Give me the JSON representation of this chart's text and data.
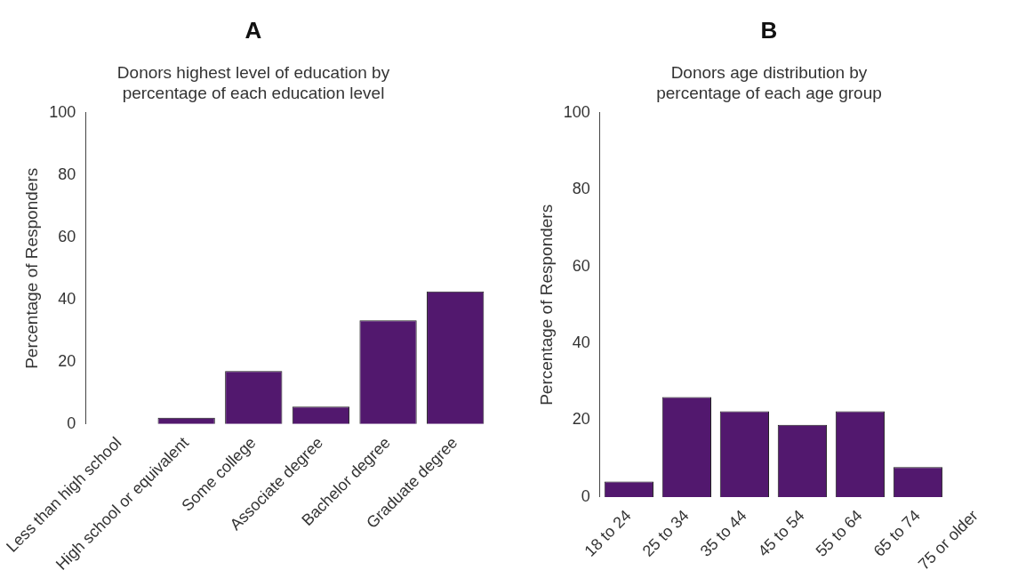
{
  "chart_data": [
    {
      "type": "bar",
      "title": "A",
      "subtitle": "Donors highest level of education by\npercentage of each education level",
      "ylabel": "Percentage of Responders",
      "categories": [
        "Less than high school",
        "High school or equivalent",
        "Some college",
        "Associate degree",
        "Bachelor degree",
        "Graduate degree"
      ],
      "values": [
        0,
        2,
        17,
        5.6,
        33.3,
        42.6
      ],
      "color": "#52186e",
      "ylim": [
        0,
        100
      ],
      "yticks": [
        0,
        20,
        40,
        60,
        80,
        100
      ],
      "grid": false,
      "legend": false
    },
    {
      "type": "bar",
      "title": "B",
      "subtitle": "Donors age distribution by\npercentage of each age group",
      "ylabel": "Percentage of Responders",
      "categories": [
        "18 to 24",
        "25 to 34",
        "35 to 44",
        "45 to 54",
        "55 to 64",
        "65 to 74",
        "75 or older"
      ],
      "values": [
        4,
        26,
        22.3,
        18.8,
        22.3,
        7.8,
        0
      ],
      "color": "#52186e",
      "ylim": [
        0,
        100
      ],
      "yticks": [
        0,
        20,
        40,
        60,
        80,
        100
      ],
      "grid": false,
      "legend": false
    }
  ]
}
